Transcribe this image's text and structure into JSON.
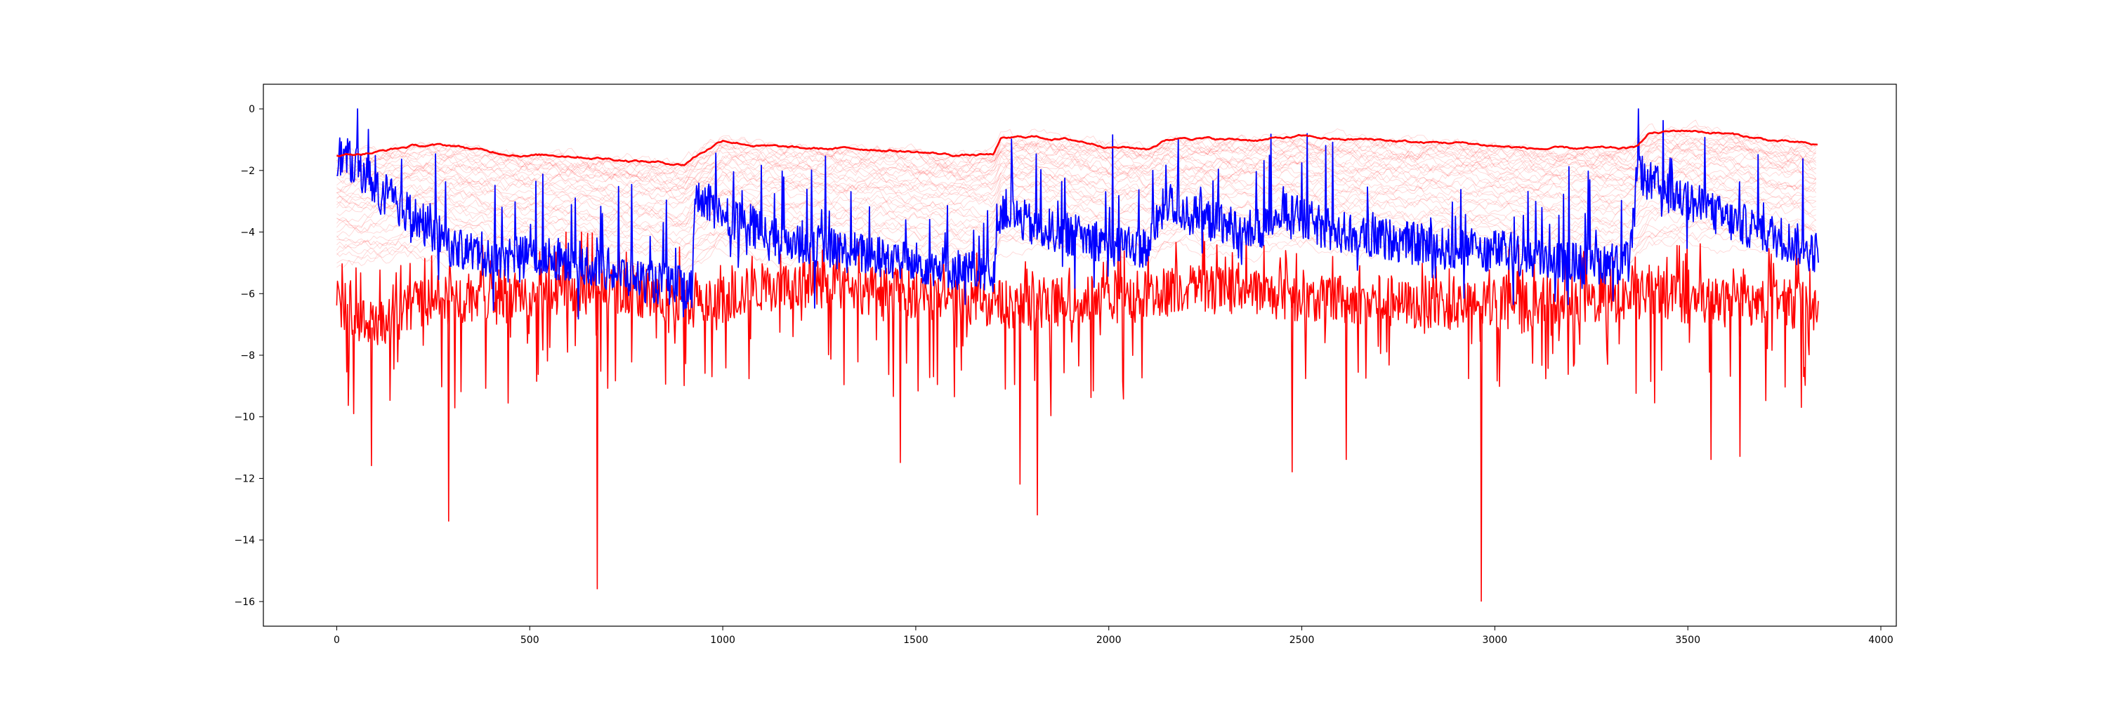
{
  "chart_data": {
    "type": "line",
    "title": "",
    "xlabel": "",
    "ylabel": "",
    "xlim": [
      -190,
      4040
    ],
    "ylim": [
      -16.8,
      0.8
    ],
    "x_ticks": [
      0,
      500,
      1000,
      1500,
      2000,
      2500,
      3000,
      3500,
      4000
    ],
    "y_ticks": [
      0,
      -2,
      -4,
      -6,
      -8,
      -10,
      -12,
      -14,
      -16
    ],
    "grid": false,
    "legend": "none",
    "n_points": 3840,
    "colors": {
      "upper_envelope": "#ff0000",
      "lower_series": "#ff0000",
      "blue_series": "#0000ff",
      "band_lines": "#ff0000"
    },
    "series": [
      {
        "color": "#ff0000",
        "style": "thick line, upper envelope",
        "values_at_x": {
          "0": -1.5,
          "100": -1.4,
          "200": -1.2,
          "300": -1.2,
          "400": -1.4,
          "500": -1.5,
          "600": -1.5,
          "700": -1.6,
          "800": -1.7,
          "900": -1.8,
          "920": -1.6,
          "1000": -1.0,
          "1100": -1.2,
          "1200": -1.3,
          "1300": -1.3,
          "1400": -1.3,
          "1500": -1.4,
          "1600": -1.5,
          "1700": -1.5,
          "1720": -1.0,
          "1800": -0.9,
          "1900": -1.0,
          "2000": -1.2,
          "2100": -1.3,
          "2150": -1.0,
          "2200": -0.9,
          "2300": -1.0,
          "2400": -1.0,
          "2500": -0.9,
          "2600": -1.0,
          "2700": -1.0,
          "2800": -1.1,
          "2900": -1.1,
          "3000": -1.2,
          "3100": -1.3,
          "3200": -1.3,
          "3300": -1.3,
          "3360": -1.3,
          "3400": -0.8,
          "3500": -0.7,
          "3600": -0.8,
          "3700": -1.0,
          "3840": -1.2
        }
      },
      {
        "color": "#0000ff",
        "style": "noisy line",
        "values_at_x": {
          "0": -1.5,
          "50": -1.8,
          "100": -2.5,
          "200": -3.5,
          "300": -4.5,
          "400": -4.8,
          "500": -4.8,
          "600": -4.9,
          "700": -5.2,
          "800": -5.6,
          "900": -5.8,
          "920": -5.9,
          "930": -3.0,
          "1000": -3.3,
          "1100": -4.0,
          "1200": -4.3,
          "1300": -4.6,
          "1400": -4.8,
          "1500": -5.0,
          "1600": -5.2,
          "1700": -5.4,
          "1720": -3.2,
          "1800": -3.8,
          "1900": -4.1,
          "2000": -4.3,
          "2100": -4.5,
          "2150": -3.0,
          "2200": -3.4,
          "2300": -3.8,
          "2400": -4.0,
          "2450": -3.2,
          "2500": -3.6,
          "2600": -4.0,
          "2700": -4.2,
          "2800": -4.4,
          "2900": -4.6,
          "3000": -4.6,
          "3100": -4.8,
          "3200": -5.0,
          "3300": -5.0,
          "3350": -5.0,
          "3370": -2.0,
          "3400": -2.4,
          "3500": -3.0,
          "3600": -3.6,
          "3700": -4.0,
          "3840": -4.7
        },
        "range": [
          -7.5,
          0
        ]
      },
      {
        "color": "#ff0000",
        "style": "noisy line, lower series",
        "values_at_x": {
          "0": -6.2,
          "100": -7.2,
          "200": -6.4,
          "300": -6.2,
          "400": -6.0,
          "500": -6.0,
          "600": -6.0,
          "700": -5.9,
          "800": -6.0,
          "900": -6.4,
          "1000": -6.2,
          "1100": -5.8,
          "1200": -5.7,
          "1300": -5.8,
          "1400": -5.9,
          "1500": -6.0,
          "1600": -6.2,
          "1700": -6.3,
          "1800": -6.4,
          "1900": -6.2,
          "2000": -6.2,
          "2100": -6.0,
          "2200": -5.8,
          "2300": -5.9,
          "2400": -6.0,
          "2500": -6.2,
          "2600": -6.2,
          "2700": -6.2,
          "2800": -6.4,
          "2900": -6.4,
          "3000": -6.4,
          "3100": -6.3,
          "3200": -6.2,
          "3300": -6.2,
          "3400": -6.0,
          "3500": -6.2,
          "3600": -6.3,
          "3700": -6.3,
          "3840": -6.4
        },
        "range": [
          -16.0,
          -4.0
        ],
        "outliers": [
          {
            "x": 90,
            "y": -11.6
          },
          {
            "x": 290,
            "y": -13.4
          },
          {
            "x": 675,
            "y": -15.6
          },
          {
            "x": 1460,
            "y": -11.5
          },
          {
            "x": 1770,
            "y": -12.2
          },
          {
            "x": 1815,
            "y": -13.2
          },
          {
            "x": 2475,
            "y": -11.8
          },
          {
            "x": 2615,
            "y": -11.4
          },
          {
            "x": 2965,
            "y": -16.0
          },
          {
            "x": 3560,
            "y": -11.4
          },
          {
            "x": 3635,
            "y": -11.3
          }
        ]
      }
    ],
    "band": {
      "color": "#ff0000",
      "style": "many faint thin lines between the upper envelope and about -6",
      "count": 40
    }
  }
}
